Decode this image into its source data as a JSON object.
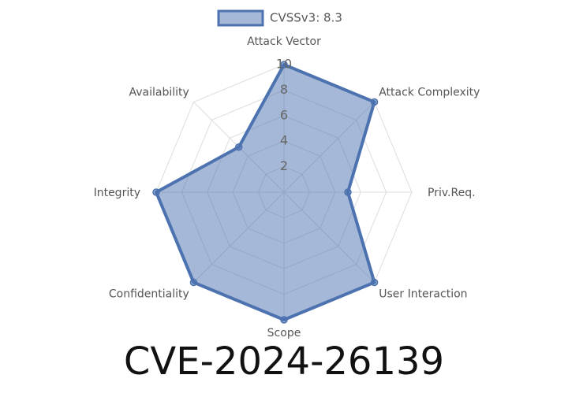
{
  "chart_data": {
    "type": "radar",
    "title": "CVE-2024-26139",
    "categories": [
      "Attack Vector",
      "Attack Complexity",
      "Priv.Req.",
      "User Interaction",
      "Scope",
      "Confidentiality",
      "Integrity",
      "Availability"
    ],
    "series": [
      {
        "name": "CVSSv3: 8.3",
        "color": "#4c72b0",
        "values": [
          10,
          10,
          5,
          10,
          10,
          10,
          10,
          5
        ]
      }
    ],
    "rlim": [
      0,
      10
    ],
    "rticks": [
      2,
      4,
      6,
      8,
      10
    ],
    "grid": true,
    "legend": "top"
  }
}
